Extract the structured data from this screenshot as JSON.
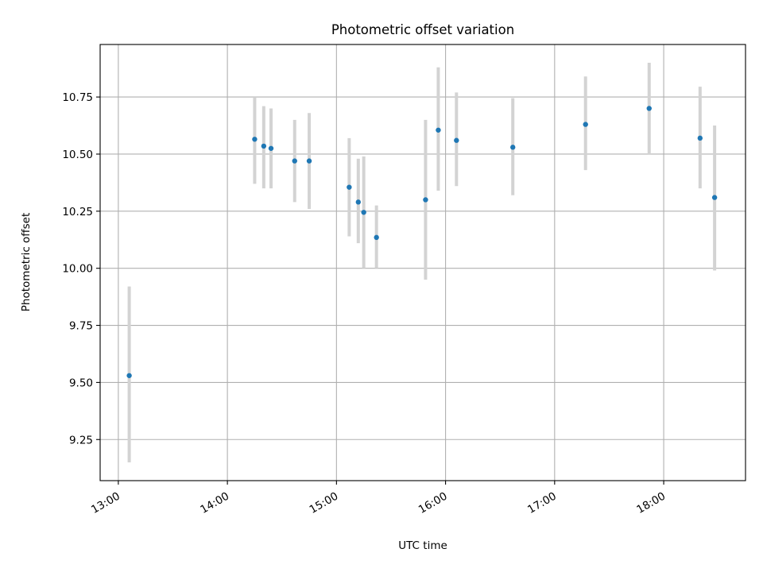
{
  "chart_data": {
    "type": "scatter",
    "title": "Photometric offset variation",
    "xlabel": "UTC time",
    "ylabel": "Photometric offset",
    "grid": true,
    "x_ticks": [
      "13:00",
      "14:00",
      "15:00",
      "16:00",
      "17:00",
      "18:00"
    ],
    "y_ticks": [
      "9.25",
      "9.50",
      "9.75",
      "10.00",
      "10.25",
      "10.50",
      "10.75"
    ],
    "xlim": [
      "12:50",
      "18:45"
    ],
    "ylim": [
      9.07,
      10.98
    ],
    "colors": {
      "point": "#1f77b4",
      "errorbar": "#d3d3d3",
      "grid": "#b0b0b0"
    },
    "points": [
      {
        "x": "13:06",
        "y": 9.53,
        "yerr": [
          9.15,
          9.92
        ]
      },
      {
        "x": "14:15",
        "y": 10.565,
        "yerr": [
          10.37,
          10.75
        ]
      },
      {
        "x": "14:20",
        "y": 10.535,
        "yerr": [
          10.35,
          10.71
        ]
      },
      {
        "x": "14:24",
        "y": 10.525,
        "yerr": [
          10.35,
          10.7
        ]
      },
      {
        "x": "14:37",
        "y": 10.47,
        "yerr": [
          10.29,
          10.65
        ]
      },
      {
        "x": "14:45",
        "y": 10.47,
        "yerr": [
          10.26,
          10.68
        ]
      },
      {
        "x": "15:07",
        "y": 10.355,
        "yerr": [
          10.14,
          10.57
        ]
      },
      {
        "x": "15:12",
        "y": 10.29,
        "yerr": [
          10.11,
          10.48
        ]
      },
      {
        "x": "15:15",
        "y": 10.245,
        "yerr": [
          10.0,
          10.49
        ]
      },
      {
        "x": "15:22",
        "y": 10.135,
        "yerr": [
          10.0,
          10.275
        ]
      },
      {
        "x": "15:49",
        "y": 10.3,
        "yerr": [
          9.95,
          10.65
        ]
      },
      {
        "x": "15:56",
        "y": 10.605,
        "yerr": [
          10.34,
          10.88
        ]
      },
      {
        "x": "16:06",
        "y": 10.56,
        "yerr": [
          10.36,
          10.77
        ]
      },
      {
        "x": "16:37",
        "y": 10.53,
        "yerr": [
          10.32,
          10.745
        ]
      },
      {
        "x": "17:17",
        "y": 10.63,
        "yerr": [
          10.43,
          10.84
        ]
      },
      {
        "x": "17:52",
        "y": 10.7,
        "yerr": [
          10.5,
          10.9
        ]
      },
      {
        "x": "18:20",
        "y": 10.57,
        "yerr": [
          10.35,
          10.795
        ]
      },
      {
        "x": "18:28",
        "y": 10.31,
        "yerr": [
          9.99,
          10.625
        ]
      }
    ]
  }
}
